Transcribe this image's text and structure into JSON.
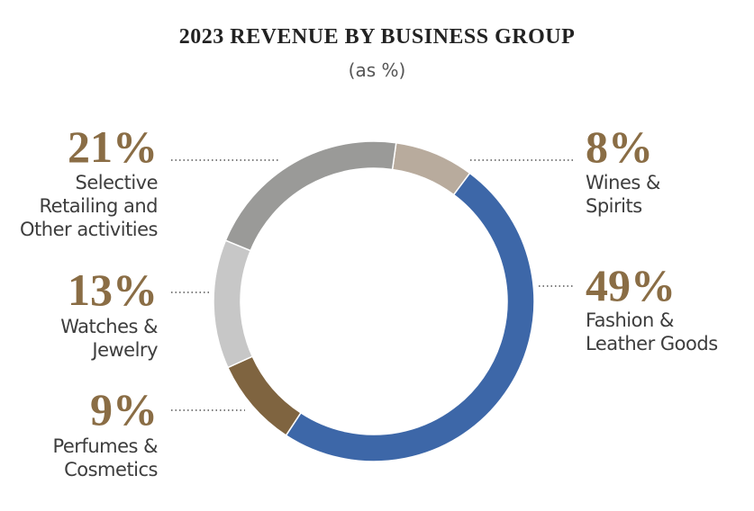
{
  "chart_data": {
    "type": "pie",
    "title": "2023 REVENUE BY BUSINESS GROUP",
    "subtitle": "(as %)",
    "categories": [
      "Wines & Spirits",
      "Fashion & Leather Goods",
      "Perfumes & Cosmetics",
      "Watches & Jewelry",
      "Selective Retailing and Other activities"
    ],
    "values": [
      8,
      49,
      9,
      13,
      21
    ],
    "value_labels": [
      "8%",
      "49%",
      "9%",
      "13%",
      "21%"
    ],
    "colors": [
      "#b8ab9d",
      "#3d67a8",
      "#7f6440",
      "#c7c7c7",
      "#9a9a98"
    ],
    "label_lines": [
      "Wines &\nSpirits",
      "Fashion &\nLeather Goods",
      "Perfumes &\nCosmetics",
      "Watches &\nJewelry",
      "Selective\nRetailing and\nOther activities"
    ],
    "donut": true
  }
}
